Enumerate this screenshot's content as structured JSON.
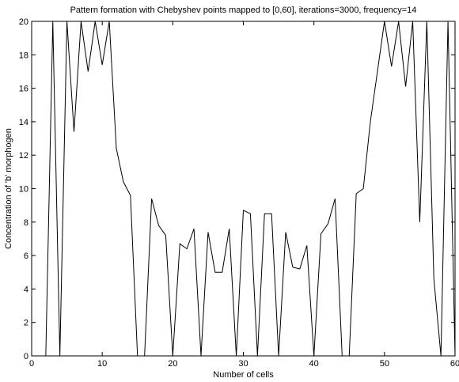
{
  "chart_data": {
    "type": "line",
    "title": "Pattern formation with Chebyshev points mapped to [0,60], iterations=3000, frequency=14",
    "xlabel": "Number of cells",
    "ylabel": "Concentration of 'b' morphogen",
    "xlim": [
      0,
      60
    ],
    "ylim": [
      0,
      20
    ],
    "xticks": [
      0,
      10,
      20,
      30,
      40,
      50,
      60
    ],
    "yticks": [
      0,
      2,
      4,
      6,
      8,
      10,
      12,
      14,
      16,
      18,
      20
    ],
    "grid": false,
    "line_color": "#000000",
    "series": [
      {
        "x": [
          0,
          1,
          2,
          3,
          4,
          5,
          6,
          7,
          8,
          9,
          10,
          11,
          12,
          13,
          14,
          15,
          16,
          17,
          18,
          19,
          20,
          21,
          22,
          23,
          24,
          25,
          26,
          27,
          28,
          29,
          30,
          31,
          32,
          33,
          34,
          35,
          36,
          37,
          38,
          39,
          40,
          41,
          42,
          43,
          44,
          45,
          46,
          47,
          48,
          49,
          50,
          51,
          52,
          53,
          54,
          55,
          56,
          57,
          58,
          59,
          60
        ],
        "values": [
          0,
          0,
          0,
          20,
          0,
          20,
          13.4,
          20,
          17,
          20,
          17.4,
          20,
          12.4,
          10.4,
          9.6,
          0,
          0,
          9.4,
          7.8,
          7.2,
          0,
          6.7,
          6.4,
          7.6,
          0,
          7.4,
          5,
          5,
          7.6,
          0,
          8.7,
          8.5,
          0,
          8.5,
          8.5,
          0,
          7.4,
          5.3,
          5.2,
          6.6,
          0,
          7.3,
          7.9,
          9.4,
          0,
          0,
          9.7,
          10,
          14,
          17,
          20,
          17.3,
          20,
          16.1,
          20,
          8,
          20,
          4.6,
          0,
          20,
          0
        ]
      }
    ]
  }
}
